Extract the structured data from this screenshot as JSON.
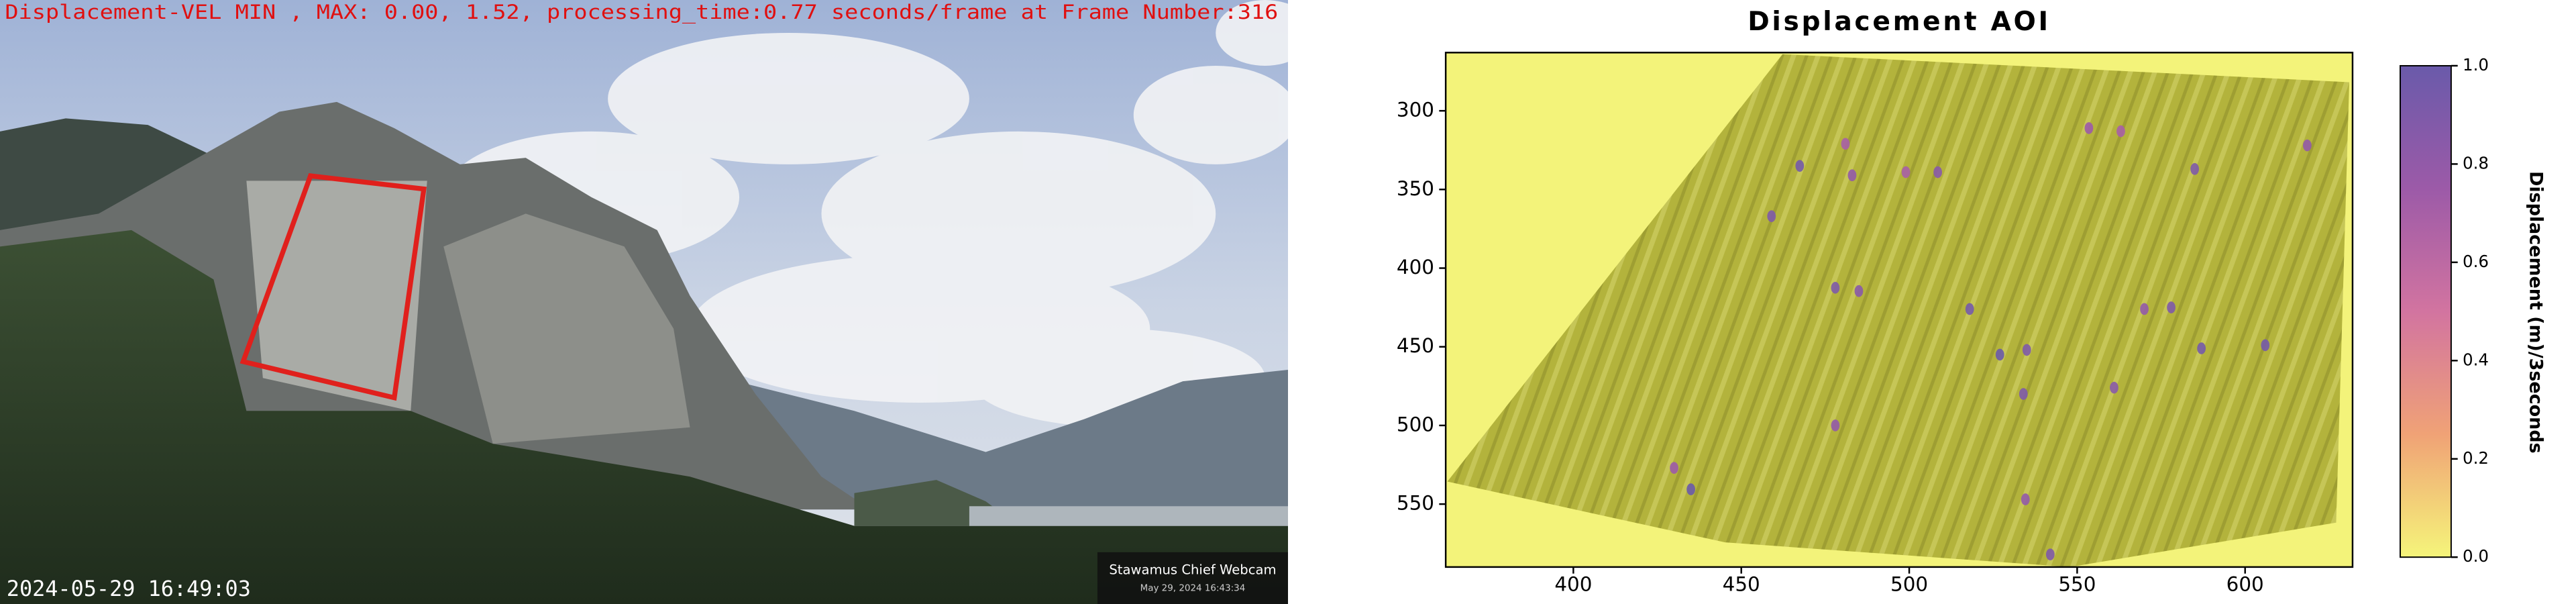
{
  "overlay": {
    "status": "Displacement-VEL MIN , MAX: 0.00, 1.52, processing_time:0.77 seconds/frame at Frame Number:316",
    "timestamp": "2024-05-29 16:49:03",
    "badge_title": "Stawamus Chief Webcam",
    "badge_date": "May 29, 2024 16:43:34"
  },
  "chart_data": {
    "type": "heatmap",
    "title": "Displacement AOI",
    "xlim": [
      362,
      632
    ],
    "xticks": [
      400,
      450,
      500,
      550,
      600
    ],
    "ylim": [
      590,
      263
    ],
    "yticks": [
      300,
      350,
      400,
      450,
      500,
      550
    ],
    "colorbar_label": "Displacement (m)/3seconds",
    "clim": [
      0,
      1
    ],
    "cticks": [
      {
        "value": 0,
        "label": "0.0"
      },
      0.2,
      0.4,
      0.6,
      0.8,
      {
        "value": 1,
        "label": "1.0"
      }
    ],
    "colormap": [
      "#f5f57a",
      "#f0a276",
      "#d274a0",
      "#9c5aa8",
      "#6a5aaa"
    ],
    "points": {
      "x": [
        467.4,
        481,
        483,
        459,
        508.5,
        499,
        553.5,
        563,
        585,
        618.5,
        478,
        485,
        518,
        527,
        535,
        570,
        578,
        587,
        561,
        534,
        478,
        435,
        430,
        534.6,
        542,
        606
      ],
      "y": [
        335,
        321,
        341,
        367,
        339,
        339,
        311,
        313,
        337,
        322,
        412.5,
        414.6,
        426,
        455,
        452,
        426,
        425,
        451,
        476,
        480,
        500,
        540.6,
        527,
        547,
        582,
        449
      ],
      "values": [
        0.95,
        0.7,
        0.8,
        0.9,
        0.85,
        0.7,
        0.75,
        0.7,
        0.9,
        0.8,
        0.9,
        0.85,
        0.95,
        1.0,
        0.9,
        0.8,
        0.9,
        0.95,
        0.85,
        0.9,
        0.8,
        1.0,
        0.75,
        0.8,
        0.9,
        0.95
      ]
    }
  }
}
